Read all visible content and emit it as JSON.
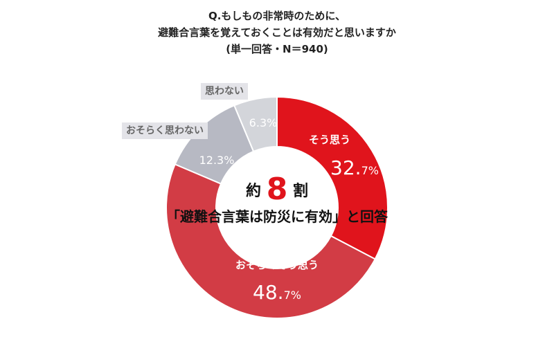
{
  "title": {
    "line1": "Q.もしもの非常時のために、",
    "line2": "避難合言葉を覚えておくことは有効だと思いますか",
    "line3": "(単一回答・N＝940)"
  },
  "center": {
    "prefix": "約",
    "number": "8",
    "suffix": "割",
    "line2": "「避難合言葉は防災に有効」と回答"
  },
  "colors": {
    "accent": "#e0141c",
    "series": [
      "#e0141c",
      "#d23c45",
      "#b7b9c3",
      "#d3d5da"
    ],
    "outside_label_bg": "#e3e3e8"
  },
  "chart_data": {
    "type": "pie",
    "donut": true,
    "categories": [
      "そう思う",
      "おそらくそう思う",
      "おそらく思わない",
      "思わない"
    ],
    "values": [
      32.7,
      48.7,
      12.3,
      6.3
    ],
    "value_labels": [
      {
        "main": "32.",
        "decimal": "7%"
      },
      {
        "main": "48.",
        "decimal": "7%"
      },
      {
        "main": "12.3%",
        "decimal": ""
      },
      {
        "main": "6.3%",
        "decimal": ""
      }
    ],
    "title": "Q.もしもの非常時のために、避難合言葉を覚えておくことは有効だと思いますか"
  }
}
